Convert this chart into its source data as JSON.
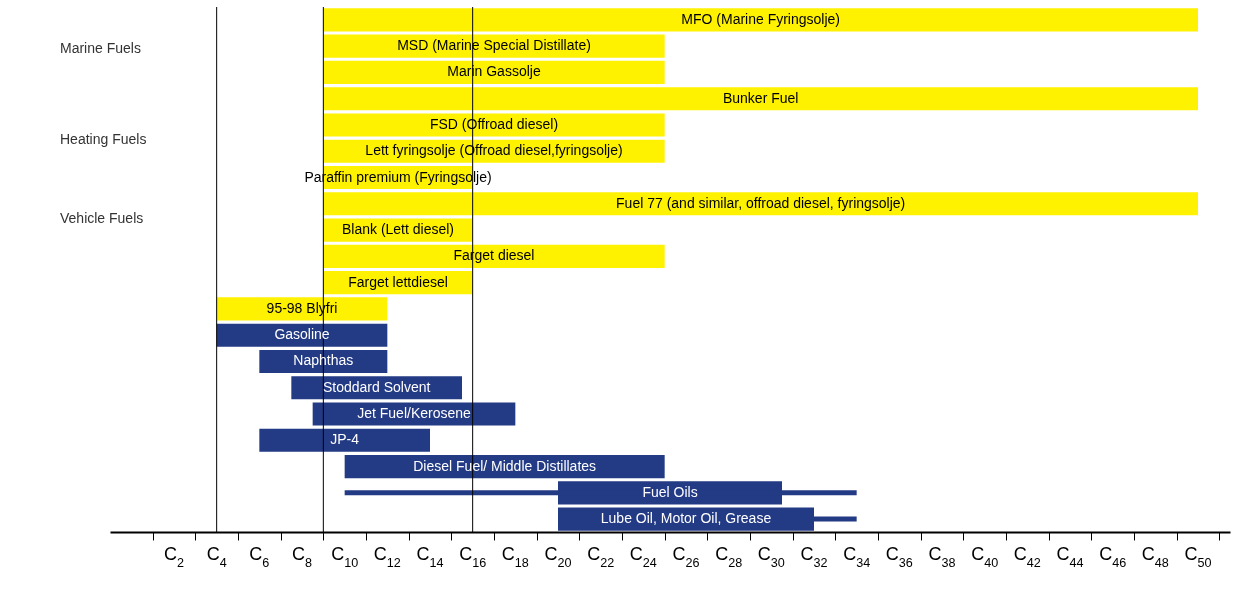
{
  "chart_data": {
    "type": "bar",
    "orientation": "horizontal",
    "categories": [
      "MFO (Marine Fyringsolje)",
      "MSD (Marine Special Distillate)",
      "Marin Gassolje",
      "Bunker Fuel",
      "FSD (Offroad diesel)",
      "Lett fyringsolje (Offroad diesel,fyringsolje)",
      "Paraffin premium (Fyringsolje)",
      "Fuel 77 (and similar, offroad diesel, fyringsolje)",
      "Blank (Lett diesel)",
      "Farget diesel",
      "Farget lettdiesel",
      "95-98 Blyfri",
      "Gasoline",
      "Naphthas",
      "Stoddard Solvent",
      "Jet Fuel/Kerosene",
      "JP-4",
      "Diesel Fuel/ Middle Distillates",
      "Fuel Oils",
      "Lube Oil, Motor Oil, Grease"
    ],
    "base": [
      9,
      9,
      9,
      9,
      9,
      9,
      9,
      9,
      9,
      9,
      9,
      4,
      4,
      6,
      7.5,
      8.5,
      6,
      10,
      20,
      20
    ],
    "values": [
      41,
      16,
      16,
      41,
      16,
      16,
      7,
      41,
      7,
      16,
      7,
      8,
      8,
      6,
      8,
      9.5,
      8,
      15,
      10.5,
      12
    ],
    "errors": [
      null,
      null,
      null,
      null,
      null,
      null,
      null,
      null,
      null,
      null,
      null,
      null,
      null,
      null,
      null,
      null,
      null,
      null,
      [
        10,
        34
      ],
      [
        32,
        34
      ]
    ],
    "colors": [
      "#fff200",
      "#fff200",
      "#fff200",
      "#fff200",
      "#fff200",
      "#fff200",
      "#fff200",
      "#fff200",
      "#fff200",
      "#fff200",
      "#fff200",
      "#fff200",
      "#233a84",
      "#233a84",
      "#233a84",
      "#233a84",
      "#233a84",
      "#233a84",
      "#233a84",
      "#233a84"
    ],
    "xlim": [
      -1,
      51.5
    ],
    "xticks": [
      {
        "value": 1,
        "label": null
      },
      {
        "value": 2,
        "label": "C$_{2}$"
      },
      {
        "value": 3,
        "label": null
      },
      {
        "value": 4,
        "label": "C$_{4}$"
      },
      {
        "value": 5,
        "label": null
      },
      {
        "value": 6,
        "label": "C$_{6}$"
      },
      {
        "value": 7,
        "label": null
      },
      {
        "value": 8,
        "label": "C$_{8}$"
      },
      {
        "value": 9,
        "label": null
      },
      {
        "value": 10,
        "label": "C$_{10}$"
      },
      {
        "value": 11,
        "label": null
      },
      {
        "value": 12,
        "label": "C$_{12}$"
      },
      {
        "value": 13,
        "label": null
      },
      {
        "value": 14,
        "label": "C$_{14}$"
      },
      {
        "value": 15,
        "label": null
      },
      {
        "value": 16,
        "label": "C$_{16}$"
      },
      {
        "value": 17,
        "label": null
      },
      {
        "value": 18,
        "label": "C$_{18}$"
      },
      {
        "value": 19,
        "label": null
      },
      {
        "value": 20,
        "label": "C$_{20}$"
      },
      {
        "value": 21,
        "label": null
      },
      {
        "value": 22,
        "label": "C$_{22}$"
      },
      {
        "value": 23,
        "label": null
      },
      {
        "value": 24,
        "label": "C$_{24}$"
      },
      {
        "value": 25,
        "label": null
      },
      {
        "value": 26,
        "label": "C$_{26}$"
      },
      {
        "value": 27,
        "label": null
      },
      {
        "value": 28,
        "label": "C$_{28}$"
      },
      {
        "value": 29,
        "label": null
      },
      {
        "value": 30,
        "label": "C$_{30}$"
      },
      {
        "value": 31,
        "label": null
      },
      {
        "value": 32,
        "label": "C$_{32}$"
      },
      {
        "value": 33,
        "label": null
      },
      {
        "value": 34,
        "label": "C$_{34}$"
      },
      {
        "value": 35,
        "label": null
      },
      {
        "value": 36,
        "label": "C$_{36}$"
      },
      {
        "value": 37,
        "label": null
      },
      {
        "value": 38,
        "label": "C$_{38}$"
      },
      {
        "value": 39,
        "label": null
      },
      {
        "value": 40,
        "label": "C$_{40}$"
      },
      {
        "value": 41,
        "label": null
      },
      {
        "value": 42,
        "label": "C$_{42}$"
      },
      {
        "value": 43,
        "label": null
      },
      {
        "value": 44,
        "label": "C$_{44}$"
      },
      {
        "value": 45,
        "label": null
      },
      {
        "value": 46,
        "label": "C$_{46}$"
      },
      {
        "value": 47,
        "label": null
      },
      {
        "value": 48,
        "label": "C$_{48}$"
      },
      {
        "value": 49,
        "label": null
      },
      {
        "value": 50,
        "label": "C$_{50}$"
      },
      {
        "value": 51,
        "label": null
      }
    ],
    "ref_lines": [
      {
        "axis": "x",
        "value": 4
      },
      {
        "axis": "x",
        "value": 9
      },
      {
        "axis": "x",
        "value": 16
      }
    ],
    "annotations": [
      "Marine Fuels",
      "Heating Fuels",
      "Vehicle Fuels"
    ],
    "tick_labels": "x",
    "grid": false,
    "legend": false
  }
}
